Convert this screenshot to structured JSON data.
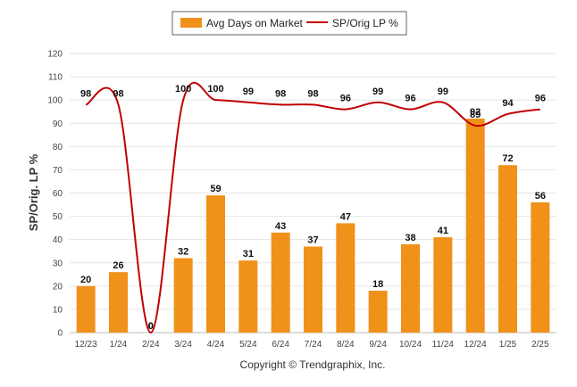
{
  "chart_data": {
    "type": "bar",
    "categories": [
      "12/23",
      "1/24",
      "2/24",
      "3/24",
      "4/24",
      "5/24",
      "6/24",
      "7/24",
      "8/24",
      "9/24",
      "10/24",
      "11/24",
      "12/24",
      "1/25",
      "2/25"
    ],
    "series": [
      {
        "name": "Avg Days on Market",
        "type": "bar",
        "color": "#f0911a",
        "values": [
          20,
          26,
          0,
          32,
          59,
          31,
          43,
          37,
          47,
          18,
          38,
          41,
          92,
          72,
          56
        ]
      },
      {
        "name": "SP/Orig LP %",
        "type": "line",
        "color": "#c00000",
        "values": [
          98,
          98,
          0,
          100,
          100,
          99,
          98,
          98,
          96,
          99,
          96,
          99,
          89,
          94,
          96
        ]
      }
    ],
    "ylabel": "SP/Orig. LP %",
    "ylim": [
      0,
      120
    ],
    "yticks": [
      "0",
      "10",
      "20",
      "30",
      "40",
      "50",
      "60",
      "70",
      "80",
      "90",
      "100",
      "110",
      "120"
    ],
    "grid": true,
    "legend": "top-center"
  },
  "copyright": "Copyright © Trendgraphix, Inc."
}
